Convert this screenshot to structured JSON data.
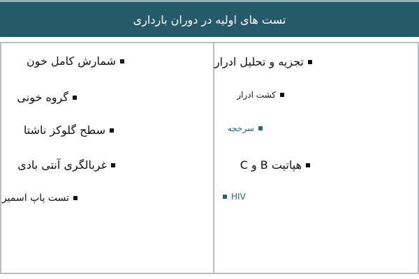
{
  "header": {
    "title": "تست های اولیه در دوران بارداری"
  },
  "right_column": [
    {
      "label": "تجزیه و تحلیل ادرار"
    },
    {
      "label": "کشت ادرار"
    },
    {
      "label": "سرخجه"
    },
    {
      "label": "هپاتیت B و C"
    },
    {
      "label": "HIV"
    }
  ],
  "left_column": [
    {
      "label": "شمارش کامل خون"
    },
    {
      "label": "گروه خونی"
    },
    {
      "label": "سطح گلوکز ناشتا"
    },
    {
      "label": "غربالگری آنتی بادی"
    },
    {
      "label": "تست پاپ اسمیر"
    }
  ],
  "colors": {
    "header_bg": "#245a6a",
    "accent_text": "#2b6470",
    "border": "#b7bfc2"
  }
}
